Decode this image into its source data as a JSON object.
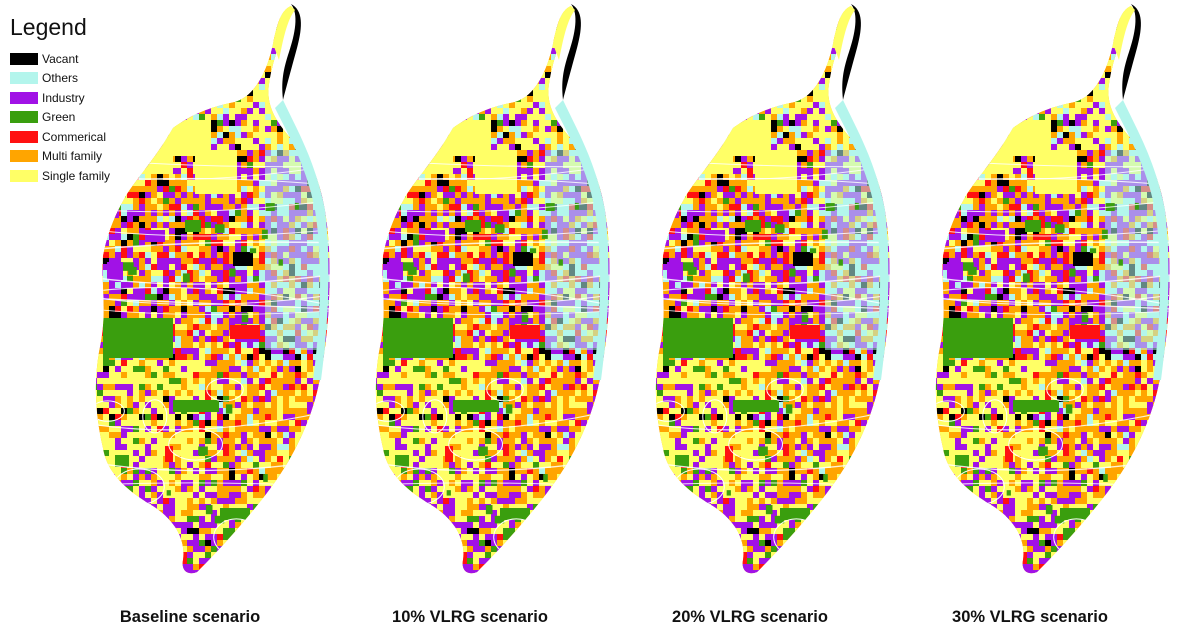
{
  "legend": {
    "title": "Legend",
    "items": [
      {
        "label": "Vacant",
        "color": "#000000"
      },
      {
        "label": "Others",
        "color": "#b3f5ec"
      },
      {
        "label": "Industry",
        "color": "#a112e6"
      },
      {
        "label": "Green",
        "color": "#3a9e0e"
      },
      {
        "label": "Commerical",
        "color": "#ff1111"
      },
      {
        "label": "Multi family",
        "color": "#ffa500"
      },
      {
        "label": "Single family",
        "color": "#ffff66"
      }
    ]
  },
  "maps": [
    {
      "caption": "Baseline scenario"
    },
    {
      "caption": "10% VLRG scenario"
    },
    {
      "caption": "20% VLRG scenario"
    },
    {
      "caption": "30% VLRG scenario"
    }
  ]
}
